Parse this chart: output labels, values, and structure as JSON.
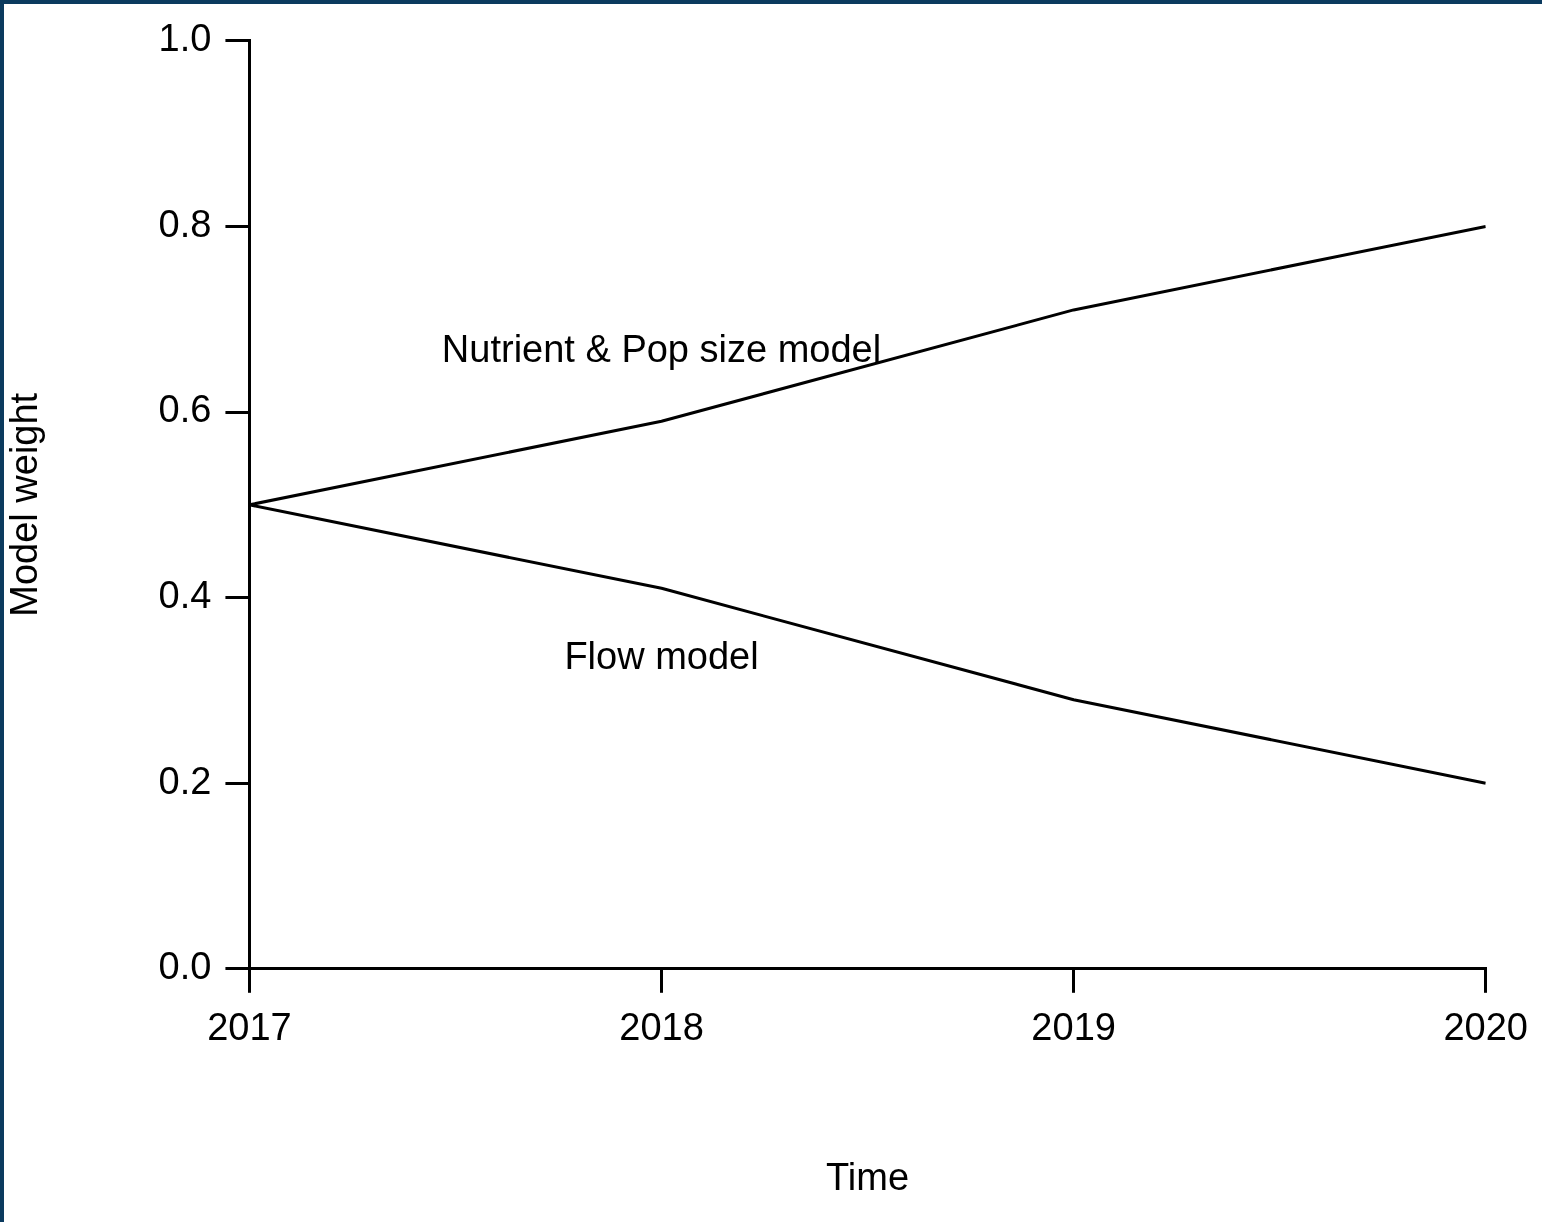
{
  "chart_data": {
    "type": "line",
    "xlabel": "Time",
    "ylabel": "Model weight",
    "x": [
      2017,
      2018,
      2019,
      2020
    ],
    "series": [
      {
        "name": "Nutrient & Pop size model",
        "color": "#000000",
        "values": [
          0.5,
          0.59,
          0.71,
          0.8
        ]
      },
      {
        "name": "Flow model",
        "color": "#000000",
        "values": [
          0.5,
          0.41,
          0.29,
          0.2
        ]
      }
    ],
    "xlim": [
      2017,
      2020
    ],
    "xticks": [
      2017,
      2018,
      2019,
      2020
    ],
    "ylim": [
      0,
      1
    ],
    "yticks": [
      {
        "value": 0,
        "label": "0.0"
      },
      {
        "value": 0.2,
        "label": "0.2"
      },
      {
        "value": 0.4,
        "label": "0.4"
      },
      {
        "value": 0.6,
        "label": "0.6"
      },
      {
        "value": 0.8,
        "label": "0.8"
      },
      {
        "value": 1,
        "label": "1.0"
      }
    ],
    "grid": false,
    "legend": false,
    "marker": "none",
    "line_style": "solid"
  }
}
